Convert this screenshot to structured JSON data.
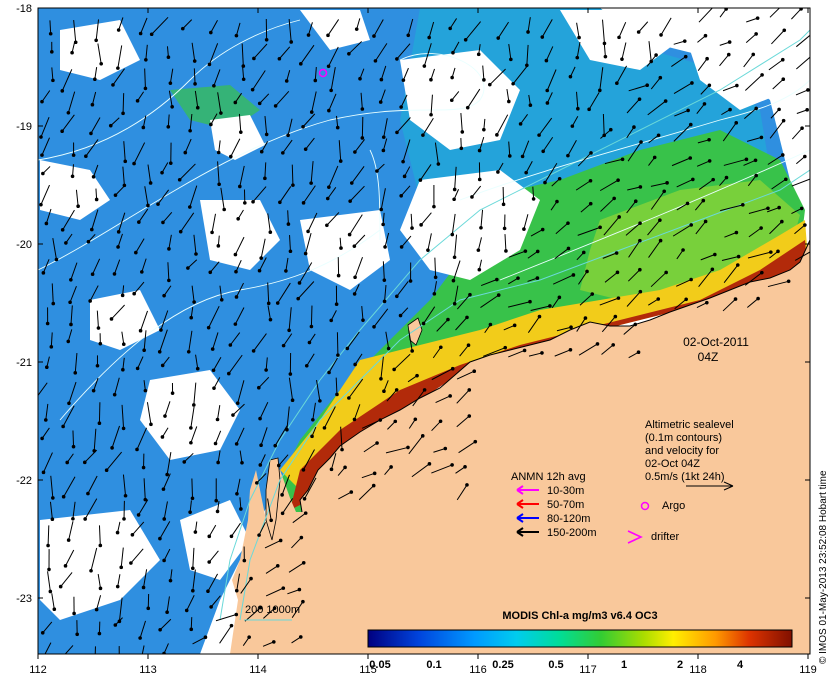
{
  "map": {
    "x_ticks": [
      "112",
      "113",
      "114",
      "115",
      "116",
      "117",
      "118",
      "119"
    ],
    "y_ticks": [
      "-18",
      "-19",
      "-20",
      "-21",
      "-22",
      "-23"
    ],
    "date_line1": "02-Oct-2011",
    "date_line2": "04Z",
    "altimetry_lines": [
      "Altimetric sealevel",
      "(0.1m contours)",
      "and velocity for",
      "02-Oct 04Z",
      "0.5m/s (1kt 24h)"
    ],
    "anmn_title": "ANMN 12h avg",
    "anmn_items": [
      {
        "label": "10-30m",
        "color": "#ff00ff"
      },
      {
        "label": "50-70m",
        "color": "#ff0000"
      },
      {
        "label": "80-120m",
        "color": "#0000ff"
      },
      {
        "label": "150-200m",
        "color": "#000000"
      }
    ],
    "argo_label": "Argo",
    "drifter_label": "drifter",
    "isobath_label": "200  1000m",
    "colorbar_title": "MODIS Chl-a mg/m3 v6.4 OC3",
    "colorbar_ticks": [
      "0.05",
      "0.1",
      "0.25",
      "0.5",
      "1",
      "2",
      "4"
    ],
    "credit": "© IMOS 01-May-2013 23:52:08 Hobart time",
    "colors": {
      "land": "#f9c89b",
      "low_chl": "#2e8ee0",
      "high_chl": "#7a1a05",
      "contour": "#8fffff"
    }
  }
}
